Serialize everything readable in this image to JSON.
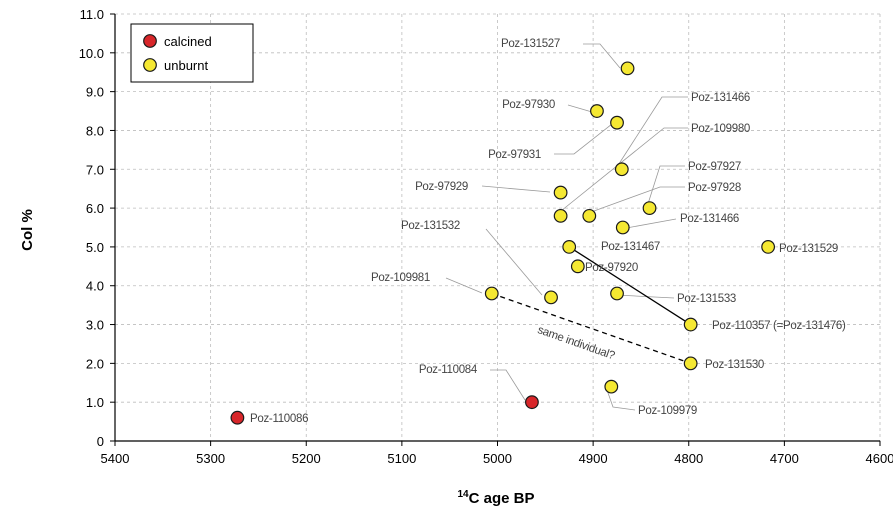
{
  "chart_data": {
    "type": "scatter",
    "xlabel_super": "14",
    "xlabel_main": "C age BP",
    "ylabel": "Col %",
    "xlim": [
      5400,
      4600
    ],
    "x_reversed": true,
    "ylim": [
      0,
      11
    ],
    "x_ticks": [
      "5400",
      "5300",
      "5200",
      "5100",
      "5000",
      "4900",
      "4800",
      "4700",
      "4600"
    ],
    "y_ticks": [
      "0",
      "1.0",
      "2.0",
      "3.0",
      "4.0",
      "5.0",
      "6.0",
      "7.0",
      "8.0",
      "9.0",
      "10.0",
      "11.0"
    ],
    "grid": true,
    "legend_position": "top-left",
    "series": [
      {
        "name": "calcined",
        "color": "#d8262a",
        "points": [
          {
            "x": 5272,
            "y": 0.6,
            "label": "Poz-110086"
          },
          {
            "x": 4964,
            "y": 1.0,
            "label": "Poz-110084"
          }
        ]
      },
      {
        "name": "unburnt",
        "color": "#f5e832",
        "points": [
          {
            "x": 4864,
            "y": 9.6,
            "label": "Poz-131527"
          },
          {
            "x": 4896,
            "y": 8.5,
            "label": "Poz-97930"
          },
          {
            "x": 4875,
            "y": 8.2,
            "label": "Poz-97931"
          },
          {
            "x": 4870,
            "y": 7.0,
            "label": "Poz-131466"
          },
          {
            "x": 4934,
            "y": 6.4,
            "label": "Poz-97929"
          },
          {
            "x": 4934,
            "y": 5.8,
            "label": "Poz-109980"
          },
          {
            "x": 4904,
            "y": 5.8,
            "label": "Poz-97928"
          },
          {
            "x": 4841,
            "y": 6.0,
            "label": "Poz-97927"
          },
          {
            "x": 4869,
            "y": 5.5,
            "label": "Poz-131466"
          },
          {
            "x": 4925,
            "y": 5.0,
            "label": "Poz-131467"
          },
          {
            "x": 4717,
            "y": 5.0,
            "label": "Poz-131529"
          },
          {
            "x": 4916,
            "y": 4.5,
            "label": "Poz-97920"
          },
          {
            "x": 5006,
            "y": 3.8,
            "label": "Poz-109981"
          },
          {
            "x": 4944,
            "y": 3.7,
            "label": "Poz-131532"
          },
          {
            "x": 4875,
            "y": 3.8,
            "label": "Poz-131533"
          },
          {
            "x": 4798,
            "y": 3.0,
            "label": "Poz-110357 (=Poz-131476)"
          },
          {
            "x": 4798,
            "y": 2.0,
            "label": "Poz-131530"
          },
          {
            "x": 4881,
            "y": 1.4,
            "label": "Poz-109979"
          }
        ]
      }
    ],
    "annotations": [
      {
        "text": "same individual?"
      }
    ]
  }
}
